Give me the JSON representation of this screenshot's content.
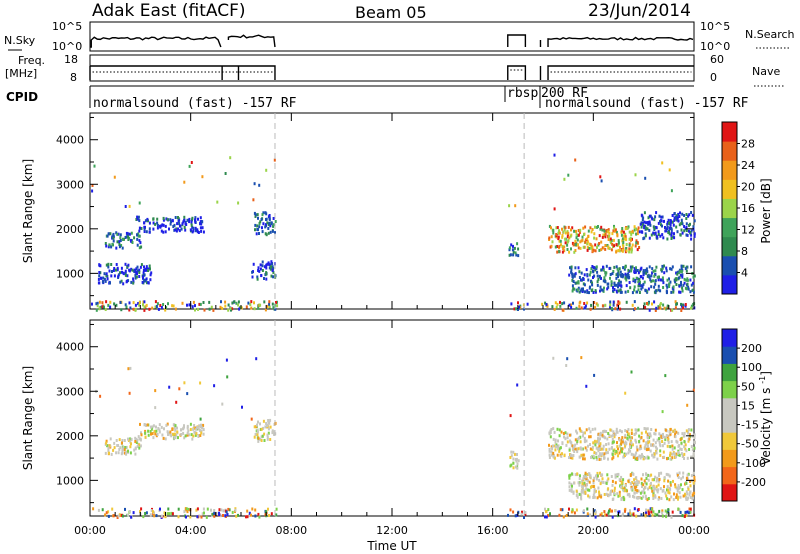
{
  "header": {
    "title": "Adak East (fitACF)",
    "beam": "Beam 05",
    "date": "23/Jun/2014"
  },
  "status_panel": {
    "nsky_label": "N.Sky",
    "nsky_ticks": [
      "10^5",
      "10^0"
    ],
    "nsearch_label": "N.Search",
    "nsearch_ticks": [
      "10^5",
      "10^0"
    ],
    "freq_label": "Freq.",
    "freq_unit": "[MHz]",
    "freq_ticks": [
      "18",
      "8"
    ],
    "nave_label": "Nave",
    "nave_ticks": [
      "60",
      "0"
    ],
    "cpid_label": "CPID",
    "cpid_segments": [
      "normalsound (fast) -157 RF",
      "rbsp",
      "200 RF",
      "normalsound (fast) -157 RF"
    ]
  },
  "colors": {
    "power": [
      "#1f1fe6",
      "#1a4fb0",
      "#2f8a4f",
      "#3fa35a",
      "#9bd44a",
      "#f0c020",
      "#f29a1b",
      "#e8611a",
      "#e01515"
    ],
    "velocity": [
      "#e01515",
      "#f2661a",
      "#f29a1b",
      "#f0c83a",
      "#c8c8c0",
      "#c8c8c0",
      "#7dd14a",
      "#3fa33f",
      "#1a4fb0",
      "#1f1fe6"
    ]
  },
  "chart_data": [
    {
      "type": "heatmap",
      "name": "power",
      "ylabel": "Slant Range [km]",
      "ylim": [
        200,
        4600
      ],
      "y_ticks": [
        1000,
        2000,
        3000,
        4000
      ],
      "xlim": [
        0,
        24
      ],
      "colorbar_label": "Power [dB]",
      "colorbar_ticks": [
        4,
        8,
        12,
        16,
        20,
        24,
        28
      ],
      "bands": [
        {
          "t0": 0.55,
          "t1": 2.0,
          "r_lo": 1600,
          "r_hi": 1950,
          "level": "mid"
        },
        {
          "t0": 1.8,
          "t1": 4.5,
          "r_lo": 1950,
          "r_hi": 2300,
          "level": "low"
        },
        {
          "t0": 0.3,
          "t1": 2.4,
          "r_lo": 800,
          "r_hi": 1250,
          "level": "low"
        },
        {
          "t0": 6.5,
          "t1": 7.35,
          "r_lo": 1900,
          "r_hi": 2400,
          "level": "mid"
        },
        {
          "t0": 6.4,
          "t1": 7.35,
          "r_lo": 900,
          "r_hi": 1300,
          "level": "low"
        },
        {
          "t0": 18.2,
          "t1": 21.8,
          "r_lo": 1500,
          "r_hi": 2100,
          "level": "high"
        },
        {
          "t0": 21.8,
          "t1": 24,
          "r_lo": 1800,
          "r_hi": 2400,
          "level": "low"
        },
        {
          "t0": 19.0,
          "t1": 24,
          "r_lo": 600,
          "r_hi": 1200,
          "level": "mid"
        },
        {
          "t0": 16.6,
          "t1": 17.0,
          "r_lo": 1400,
          "r_hi": 1700,
          "level": "mid"
        }
      ]
    },
    {
      "type": "heatmap",
      "name": "velocity",
      "ylabel": "Slant Range [km]",
      "ylim": [
        200,
        4600
      ],
      "y_ticks": [
        1000,
        2000,
        3000,
        4000
      ],
      "xlim": [
        0,
        24
      ],
      "xlabel": "Time UT",
      "x_ticks": [
        "00:00",
        "04:00",
        "08:00",
        "12:00",
        "16:00",
        "20:00",
        "00:00"
      ],
      "colorbar_label": "Velocity [m s^-1]",
      "colorbar_ticks": [
        "-200",
        "-100",
        "-50",
        "-15",
        "15",
        "50",
        "100",
        "200"
      ],
      "bands": [
        {
          "t0": 0.55,
          "t1": 2.0,
          "r_lo": 1600,
          "r_hi": 2000,
          "level": "grey"
        },
        {
          "t0": 1.8,
          "t1": 4.5,
          "r_lo": 1950,
          "r_hi": 2300,
          "level": "grey"
        },
        {
          "t0": 6.5,
          "t1": 7.35,
          "r_lo": 1900,
          "r_hi": 2400,
          "level": "grey"
        },
        {
          "t0": 18.2,
          "t1": 24,
          "r_lo": 1500,
          "r_hi": 2200,
          "level": "grey"
        },
        {
          "t0": 19.0,
          "t1": 24,
          "r_lo": 600,
          "r_hi": 1200,
          "level": "grey"
        },
        {
          "t0": 16.6,
          "t1": 17.0,
          "r_lo": 1300,
          "r_hi": 1700,
          "level": "grey"
        }
      ]
    }
  ]
}
